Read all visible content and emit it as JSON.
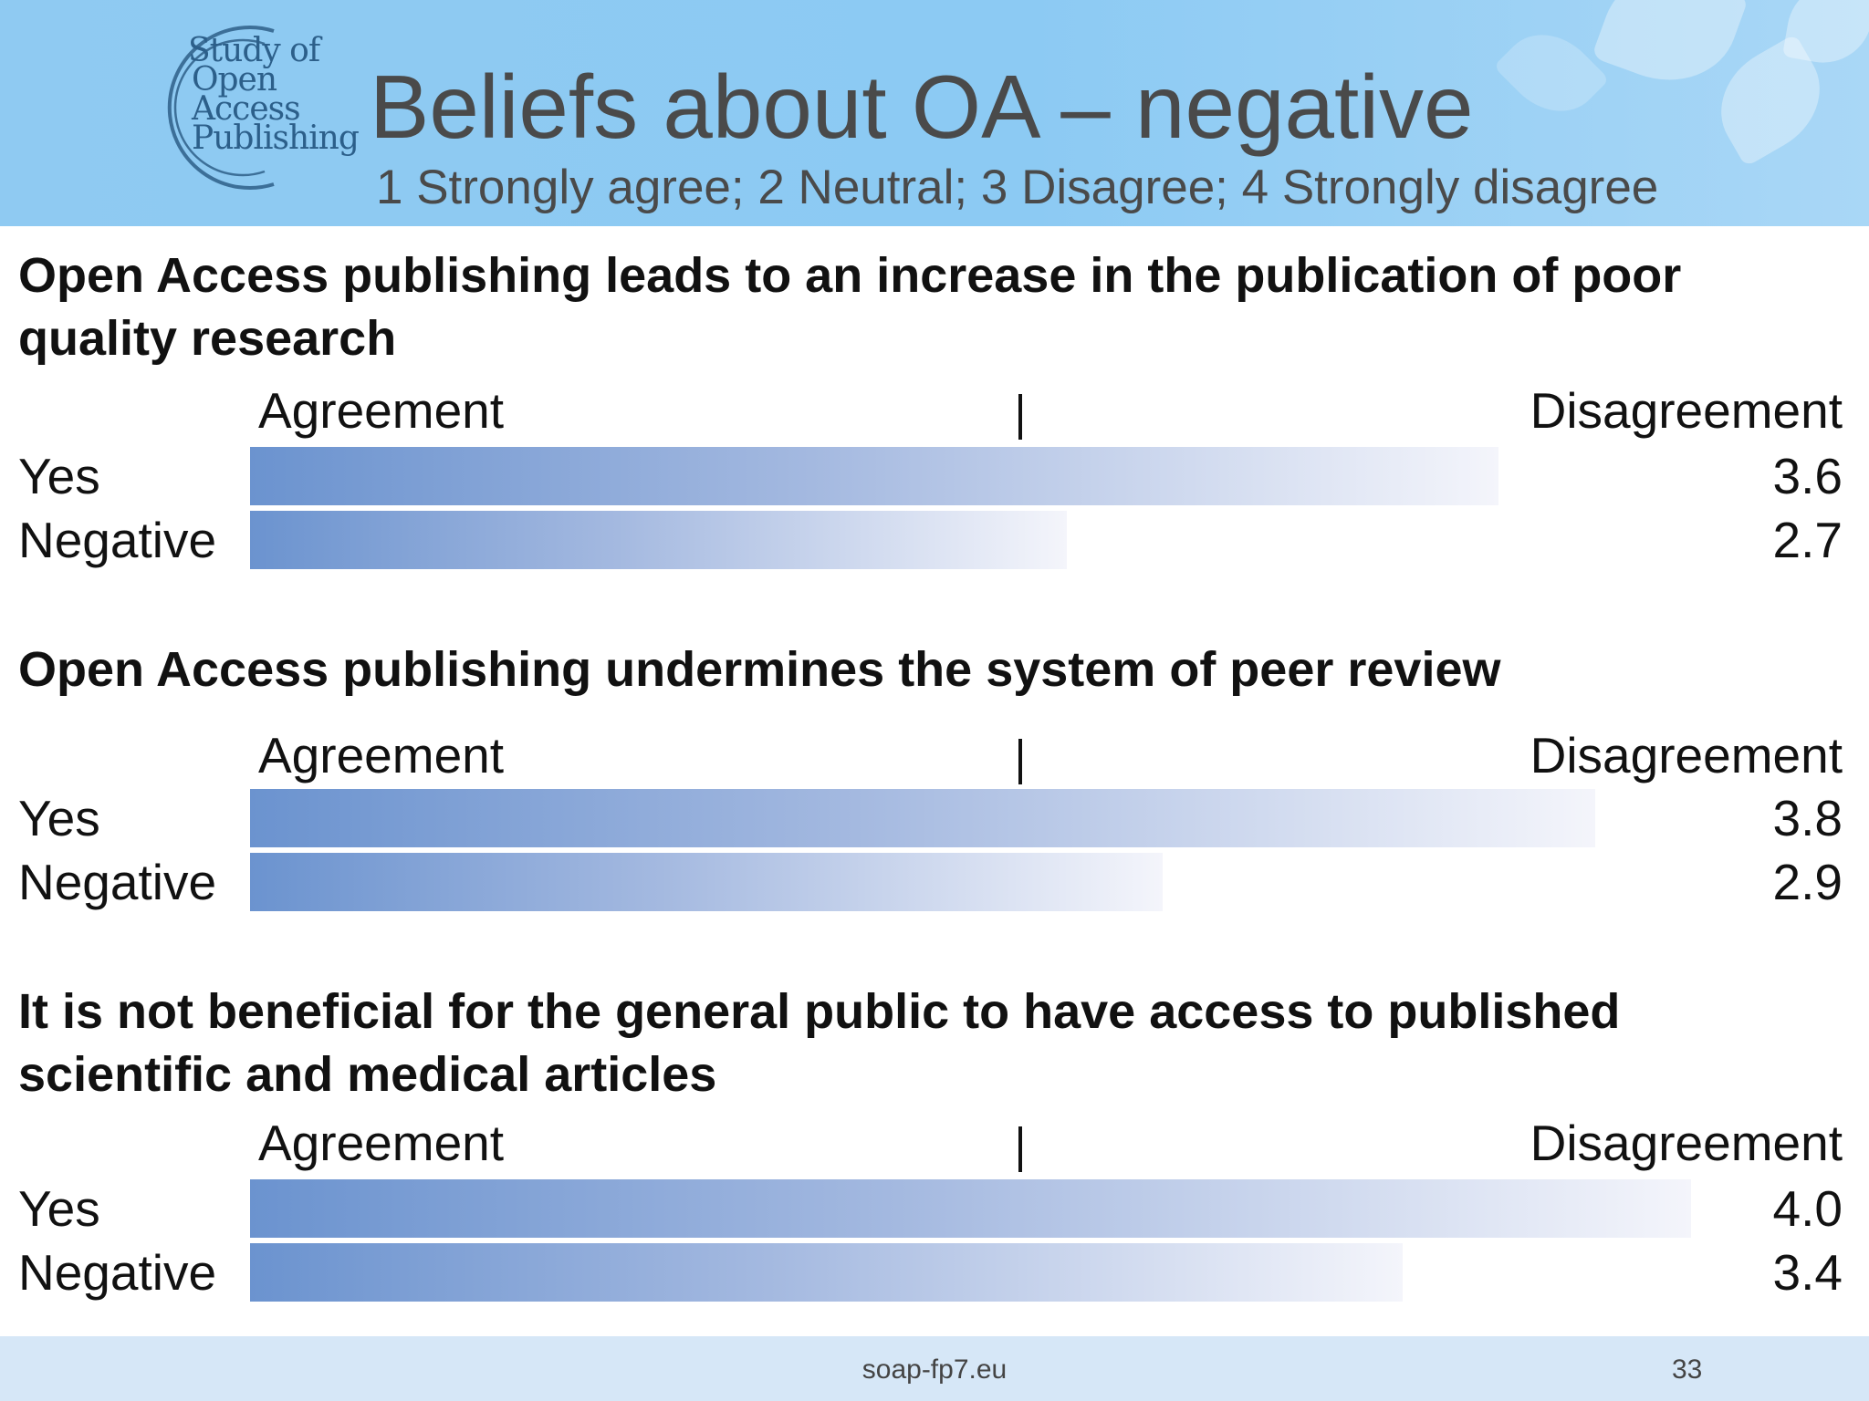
{
  "header": {
    "title": "Beliefs about OA – negative",
    "subtitle": "1 Strongly agree; 2 Neutral; 3 Disagree; 4 Strongly disagree",
    "logo_lines": [
      "Study of",
      "Open",
      "Access",
      "Publishing"
    ]
  },
  "chart_data": [
    {
      "type": "bar",
      "title": "Open Access publishing leads to an increase in the publication of poor quality research",
      "axis_left_label": "Agreement",
      "axis_right_label": "Disagreement",
      "categories": [
        "Yes",
        "Negative"
      ],
      "values": [
        3.6,
        2.7
      ],
      "value_labels": [
        "3.6",
        "2.7"
      ],
      "xlim": [
        1,
        4
      ],
      "orientation": "horizontal"
    },
    {
      "type": "bar",
      "title": "Open Access publishing undermines the system of peer review",
      "axis_left_label": "Agreement",
      "axis_right_label": "Disagreement",
      "categories": [
        "Yes",
        "Negative"
      ],
      "values": [
        3.8,
        2.9
      ],
      "value_labels": [
        "3.8",
        "2.9"
      ],
      "xlim": [
        1,
        4
      ],
      "orientation": "horizontal"
    },
    {
      "type": "bar",
      "title": "It is not beneficial for the general public to have access to published scientific and medical articles",
      "axis_left_label": "Agreement",
      "axis_right_label": "Disagreement",
      "categories": [
        "Yes",
        "Negative"
      ],
      "values": [
        4.0,
        3.4
      ],
      "value_labels": [
        "4.0",
        "3.4"
      ],
      "xlim": [
        1,
        4
      ],
      "orientation": "horizontal"
    }
  ],
  "footer": {
    "site": "soap-fp7.eu",
    "page_number": "33"
  }
}
